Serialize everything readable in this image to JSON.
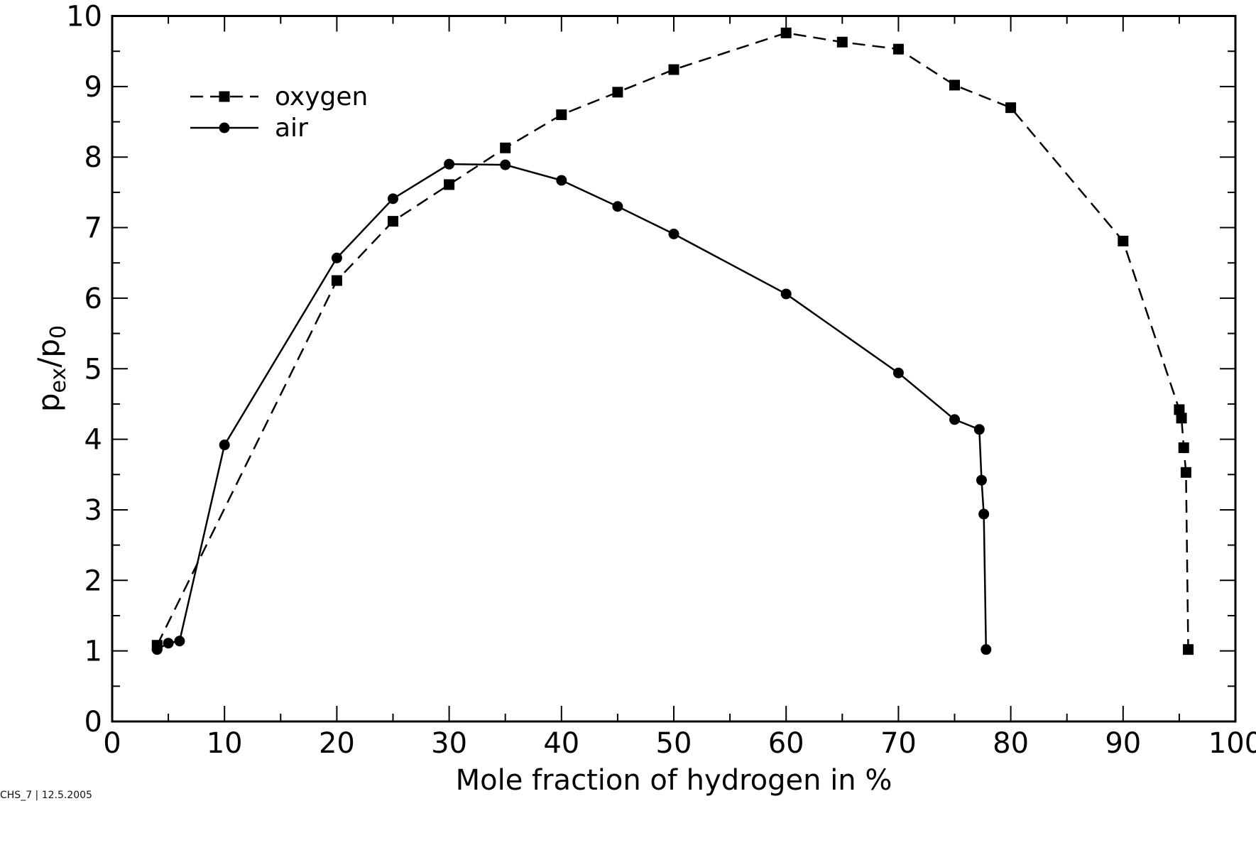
{
  "chart_data": {
    "type": "line",
    "xlabel": "Mole fraction of hydrogen in %",
    "ylabel": {
      "base": "p",
      "sub1": "ex",
      "slash": "/p",
      "sub2": "0"
    },
    "xlim": [
      0,
      100
    ],
    "ylim": [
      0,
      10
    ],
    "xticks": [
      0,
      10,
      20,
      30,
      40,
      50,
      60,
      70,
      80,
      90,
      100
    ],
    "yticks": [
      0,
      1,
      2,
      3,
      4,
      5,
      6,
      7,
      8,
      9,
      10
    ],
    "grid": false,
    "legend_position": "top-left",
    "series": [
      {
        "name": "oxygen",
        "marker": "square",
        "line": "dashed",
        "color": "#000000",
        "x": [
          4,
          20,
          25,
          30,
          35,
          40,
          45,
          50,
          60,
          65,
          70,
          75,
          80,
          90,
          95,
          95.2,
          95.4,
          95.6,
          95.8
        ],
        "y": [
          1.08,
          6.25,
          7.09,
          7.61,
          8.13,
          8.6,
          8.92,
          9.24,
          9.76,
          9.63,
          9.53,
          9.02,
          8.7,
          6.81,
          4.42,
          4.3,
          3.88,
          3.53,
          1.02
        ]
      },
      {
        "name": "air",
        "marker": "circle",
        "line": "solid",
        "color": "#000000",
        "x": [
          4,
          5,
          6,
          10,
          20,
          25,
          30,
          35,
          40,
          45,
          50,
          60,
          70,
          75,
          77.2,
          77.4,
          77.6,
          77.8
        ],
        "y": [
          1.02,
          1.11,
          1.14,
          3.92,
          6.57,
          7.41,
          7.9,
          7.89,
          7.67,
          7.3,
          6.91,
          6.06,
          4.94,
          4.28,
          4.14,
          3.42,
          2.94,
          1.02
        ]
      }
    ]
  },
  "footer": "CHS_7 | 12.5.2005"
}
